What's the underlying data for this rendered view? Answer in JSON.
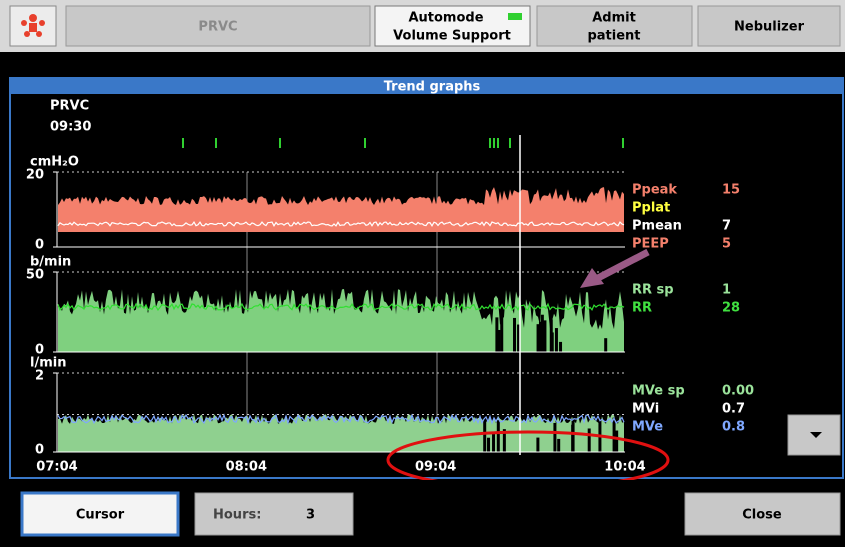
{
  "top_bar": {
    "mode": "PRVC",
    "automode": [
      "Automode",
      "Volume Support"
    ],
    "admit": [
      "Admit",
      "patient"
    ],
    "nebulizer": "Nebulizer"
  },
  "panel": {
    "title": "Trend graphs",
    "mode": "PRVC",
    "time": "09:30",
    "x_labels": [
      "07:04",
      "08:04",
      "09:04",
      "10:04"
    ],
    "graphs": [
      {
        "unit": "cmH₂O",
        "ylim": [
          0,
          20
        ],
        "yticks": [
          0,
          20
        ],
        "readouts": [
          {
            "name": "Ppeak",
            "value": "15",
            "color": "#f4806c"
          },
          {
            "name": "Pplat",
            "color": "#ffff40"
          },
          {
            "name": "Pmean",
            "value": "7",
            "color": "#ffffff"
          },
          {
            "name": "PEEP",
            "value": "5",
            "color": "#f4806c"
          }
        ]
      },
      {
        "unit": "b/min",
        "ylim": [
          0,
          50
        ],
        "yticks": [
          0,
          50
        ],
        "readouts": [
          {
            "name": "RR sp",
            "value": "1",
            "color": "#9be39b"
          },
          {
            "name": "RR",
            "value": "28",
            "color": "#40e040"
          }
        ]
      },
      {
        "unit": "l/min",
        "ylim": [
          0,
          2
        ],
        "yticks": [
          0,
          2
        ],
        "readouts": [
          {
            "name": "MVe sp",
            "value": "0.00",
            "color": "#9be39b"
          },
          {
            "name": "MVi",
            "value": "0.7",
            "color": "#ffffff"
          },
          {
            "name": "MVe",
            "value": "0.8",
            "color": "#7fa8ff"
          }
        ]
      }
    ]
  },
  "bottom_bar": {
    "cursor": "Cursor",
    "hours_label": "Hours:",
    "hours": "3",
    "close": "Close"
  }
}
